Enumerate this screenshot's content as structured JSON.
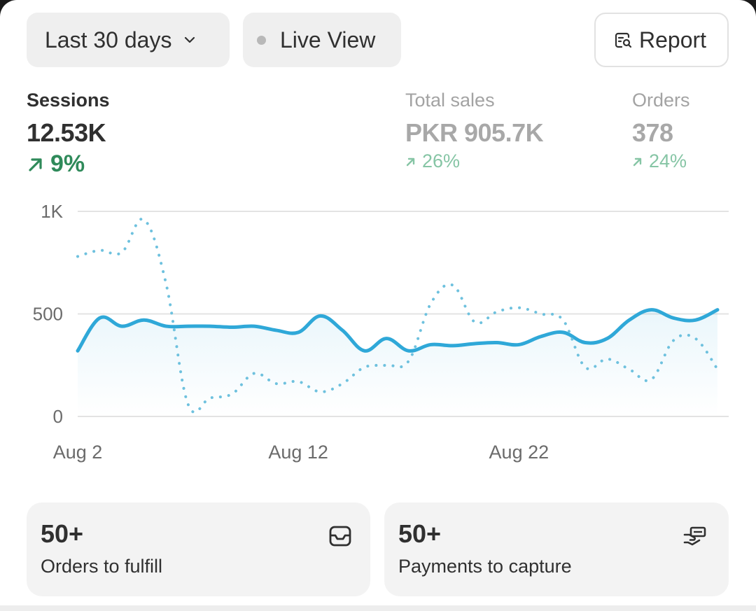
{
  "toolbar": {
    "date_range_label": "Last 30 days",
    "live_view_label": "Live View",
    "report_label": "Report"
  },
  "metrics": [
    {
      "label": "Sessions",
      "value": "12.53K",
      "change": "9%",
      "trend": "up",
      "active": true
    },
    {
      "label": "Total sales",
      "value": "PKR 905.7K",
      "change": "26%",
      "trend": "up",
      "active": false
    },
    {
      "label": "Orders",
      "value": "378",
      "change": "24%",
      "trend": "up",
      "active": false
    }
  ],
  "colors": {
    "series_current": "#2fa8d8",
    "series_previous": "#6ec1de",
    "trend_positive": "#2f8a5a",
    "trend_positive_muted": "#86c5a5",
    "grid": "#e3e3e3",
    "axis_text": "#6b6b6b"
  },
  "chart_data": {
    "type": "line",
    "y_ticks": [
      "1K",
      "500",
      "0"
    ],
    "ylim": [
      0,
      1000
    ],
    "x_tick_labels": [
      "Aug 2",
      "Aug 12",
      "Aug 22"
    ],
    "x": [
      1,
      2,
      3,
      4,
      5,
      6,
      7,
      8,
      9,
      10,
      11,
      12,
      13,
      14,
      15,
      16,
      17,
      18,
      19,
      20,
      21,
      22,
      23,
      24,
      25,
      26,
      27,
      28,
      29,
      30
    ],
    "grid": true,
    "series": [
      {
        "style": "solid",
        "values": [
          320,
          480,
          440,
          470,
          440,
          440,
          440,
          435,
          440,
          420,
          410,
          490,
          420,
          320,
          380,
          320,
          350,
          345,
          355,
          360,
          350,
          390,
          410,
          360,
          380,
          470,
          520,
          480,
          470,
          520
        ]
      },
      {
        "style": "dotted",
        "values": [
          780,
          810,
          800,
          960,
          650,
          60,
          90,
          110,
          210,
          160,
          170,
          120,
          160,
          240,
          250,
          270,
          550,
          640,
          460,
          510,
          530,
          500,
          470,
          240,
          280,
          230,
          180,
          370,
          380,
          230
        ]
      }
    ]
  },
  "tiles": [
    {
      "value": "50+",
      "label": "Orders to fulfill",
      "icon": "inbox-icon"
    },
    {
      "value": "50+",
      "label": "Payments to capture",
      "icon": "hand-money-icon"
    }
  ]
}
